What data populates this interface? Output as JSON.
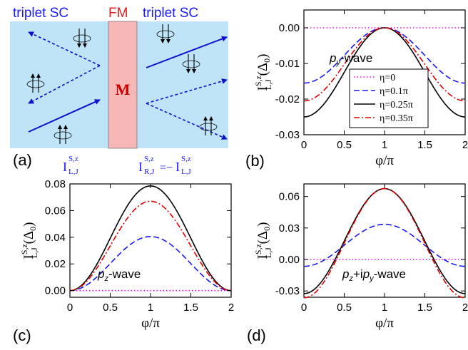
{
  "schematic": {
    "left_label": "triplet SC",
    "middle_label": "FM",
    "right_label": "triplet SC",
    "magnet_label": "M",
    "panel_label": "(a)",
    "current_left": {
      "base": "I",
      "sup": "S,z",
      "sub": "L,J"
    },
    "current_right": {
      "base": "I",
      "sup": "S,z",
      "sub": "R,J",
      "eq": "=−",
      "base2": "I",
      "sup2": "S,z",
      "sub2": "L,J"
    },
    "colors": {
      "sc": "#bfe3f7",
      "fm": "#f7b7b7",
      "arrow": "#1010cc",
      "label": "#1a1aff",
      "fm_label": "#e02020",
      "m_label": "#cc0000"
    }
  },
  "legend": [
    "η=0",
    "η=0.1π",
    "η=0.25π",
    "η=0.35π"
  ],
  "chart_data": [
    {
      "panel": "(b)",
      "type": "line",
      "annotation": "p_y-wave",
      "ylabel": "I^{S,z}_{L,J} (Δ_0)",
      "xlabel": "φ/π",
      "xlim": [
        0,
        2
      ],
      "ylim": [
        -0.03,
        0.005
      ],
      "xticks": [
        "0",
        "0.5",
        "1",
        "1.5",
        "2"
      ],
      "yticks": [
        "0.00",
        "-0.01",
        "-0.02",
        "-0.03"
      ],
      "ytick_values": [
        0.0,
        -0.01,
        -0.02,
        -0.03
      ],
      "series": [
        {
          "name": "η=0",
          "amplitude": 0.0
        },
        {
          "name": "η=0.1π",
          "amplitude": -0.0155
        },
        {
          "name": "η=0.25π",
          "amplitude": -0.025
        },
        {
          "name": "η=0.35π",
          "amplitude": -0.0205
        }
      ],
      "form": "y = A*(1+cos(pi*x))/2"
    },
    {
      "panel": "(c)",
      "type": "line",
      "annotation": "p_z-wave",
      "ylabel": "I^{S,z}_{L,J} (Δ_0)",
      "xlabel": "φ/π",
      "xlim": [
        0,
        2
      ],
      "ylim": [
        -0.005,
        0.08
      ],
      "xticks": [
        "0",
        "0.5",
        "1",
        "1.5",
        "2"
      ],
      "yticks": [
        "0.00",
        "0.02",
        "0.04",
        "0.06",
        "0.08"
      ],
      "ytick_values": [
        0.0,
        0.02,
        0.04,
        0.06,
        0.08
      ],
      "series": [
        {
          "name": "η=0",
          "amplitude": 0.0
        },
        {
          "name": "η=0.1π",
          "amplitude": 0.0405
        },
        {
          "name": "η=0.25π",
          "amplitude": 0.0785
        },
        {
          "name": "η=0.35π",
          "amplitude": 0.067
        }
      ],
      "form": "y = A*(1-cos(pi*x))/2"
    },
    {
      "panel": "(d)",
      "type": "line",
      "annotation": "p_z+ip_y-wave",
      "ylabel": "I^{S,z}_{L,J} (Δ_0)",
      "xlabel": "φ/π",
      "xlim": [
        0,
        2
      ],
      "ylim": [
        -0.036,
        0.072
      ],
      "xticks": [
        "0",
        "0.5",
        "1",
        "1.5",
        "2"
      ],
      "yticks": [
        "0.06",
        "0.03",
        "0.00",
        "-0.03"
      ],
      "ytick_values": [
        0.06,
        0.03,
        0.0,
        -0.03
      ],
      "series": [
        {
          "name": "η=0",
          "a": 0.0,
          "b": 0.0
        },
        {
          "name": "η=0.1π",
          "a": 0.0135,
          "b": 0.02
        },
        {
          "name": "η=0.25π",
          "a": 0.0175,
          "b": 0.05
        },
        {
          "name": "η=0.35π",
          "a": 0.0155,
          "b": 0.052
        }
      ],
      "form": "y = a - b*cos(pi*x)"
    }
  ],
  "series_styles": [
    {
      "color": "#ff00ff",
      "dash": "1.5,3"
    },
    {
      "color": "#1a1aee",
      "dash": "8,4"
    },
    {
      "color": "#000000",
      "dash": ""
    },
    {
      "color": "#dd0000",
      "dash": "8,3,2,3"
    }
  ]
}
